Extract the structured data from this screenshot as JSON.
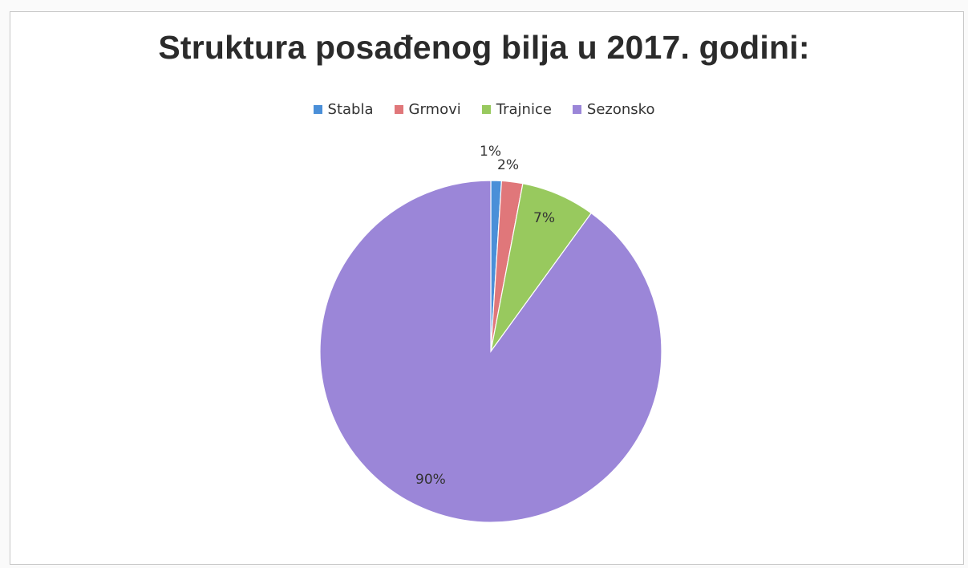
{
  "chart_data": {
    "type": "pie",
    "title": "Struktura posađenog bilja u 2017. godini:",
    "legend_position": "top",
    "categories": [
      "Stabla",
      "Grmovi",
      "Trajnice",
      "Sezonsko"
    ],
    "values": [
      1,
      2,
      7,
      90
    ],
    "labels": [
      "1%",
      "2%",
      "7%",
      "90%"
    ],
    "colors": [
      "#4a8fd8",
      "#e0777a",
      "#98c95e",
      "#9b86d8"
    ]
  }
}
